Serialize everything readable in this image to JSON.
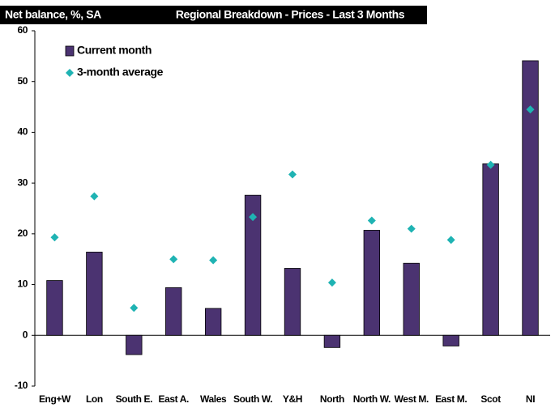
{
  "chart_data": {
    "type": "bar",
    "title": "Regional Breakdown - Prices - Last 3 Months",
    "ylabel": "Net balance, %, SA",
    "categories": [
      "Eng+W",
      "Lon",
      "South E.",
      "East A.",
      "Wales",
      "South W.",
      "Y&H",
      "North",
      "North W.",
      "West M.",
      "East M.",
      "Scot",
      "NI"
    ],
    "series": [
      {
        "name": "Current month",
        "type": "bar",
        "color": "#4b3371",
        "values": [
          10.8,
          16.4,
          -3.8,
          9.4,
          5.3,
          27.6,
          13.2,
          -2.4,
          20.7,
          14.2,
          -2.1,
          33.8,
          54.1
        ]
      },
      {
        "name": "3-month average",
        "type": "scatter",
        "color": "#1fb3b3",
        "values": [
          19.3,
          27.4,
          5.4,
          15.0,
          14.8,
          23.3,
          31.7,
          10.4,
          22.6,
          21.0,
          18.8,
          33.6,
          44.5
        ]
      }
    ],
    "ylim": [
      -10,
      60
    ],
    "yticks": [
      -10,
      0,
      10,
      20,
      30,
      40,
      50,
      60
    ],
    "legend": "top-left"
  }
}
